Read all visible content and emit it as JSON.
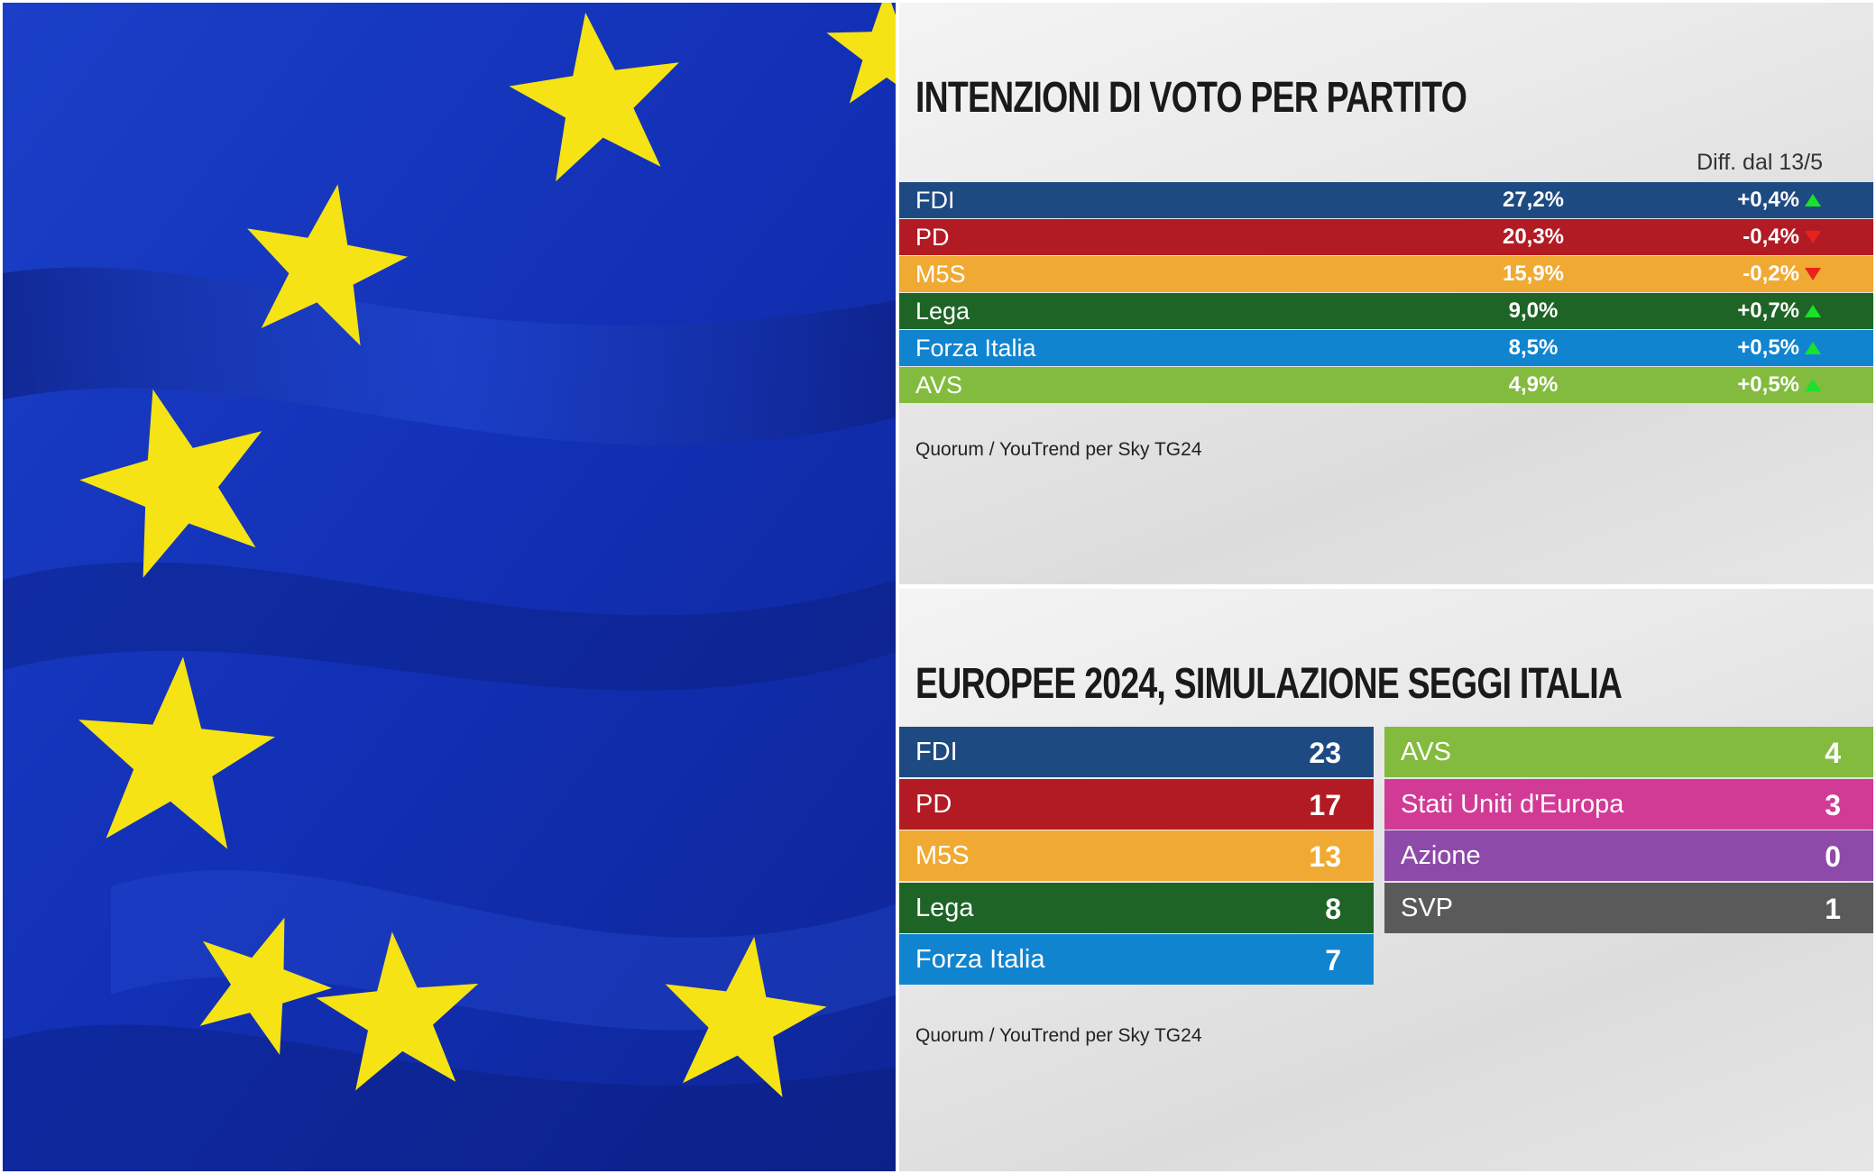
{
  "colors": {
    "FDI": "#1e4a82",
    "PD": "#b31b24",
    "M5S": "#f0aa33",
    "Lega": "#1e6426",
    "Forza Italia": "#1184d0",
    "AVS": "#83bb3f",
    "Stati Uniti d'Europa": "#d13b96",
    "Azione": "#8e4aa8",
    "SVP": "#5a5a5a",
    "up_arrow": "#19e22a",
    "down_arrow": "#e9221c"
  },
  "flag": {
    "background": "#1430b8",
    "star_color": "#f5e315"
  },
  "chart_data": [
    {
      "type": "table",
      "title": "INTENZIONI DI VOTO PER PARTITO",
      "diff_header": "Diff. dal 13/5",
      "rows": [
        {
          "party": "FDI",
          "value": "27,2%",
          "diff": "+0,4%",
          "trend": "up"
        },
        {
          "party": "PD",
          "value": "20,3%",
          "diff": "-0,4%",
          "trend": "down"
        },
        {
          "party": "M5S",
          "value": "15,9%",
          "diff": "-0,2%",
          "trend": "down"
        },
        {
          "party": "Lega",
          "value": "9,0%",
          "diff": "+0,7%",
          "trend": "up"
        },
        {
          "party": "Forza Italia",
          "value": "8,5%",
          "diff": "+0,5%",
          "trend": "up"
        },
        {
          "party": "AVS",
          "value": "4,9%",
          "diff": "+0,5%",
          "trend": "up"
        }
      ],
      "source": "Quorum / YouTrend per Sky TG24"
    },
    {
      "type": "table",
      "title": "EUROPEE 2024, SIMULAZIONE SEGGI ITALIA",
      "left_column": [
        {
          "party": "FDI",
          "seats": "23"
        },
        {
          "party": "PD",
          "seats": "17"
        },
        {
          "party": "M5S",
          "seats": "13"
        },
        {
          "party": "Lega",
          "seats": "8"
        },
        {
          "party": "Forza Italia",
          "seats": "7"
        }
      ],
      "right_column": [
        {
          "party": "AVS",
          "seats": "4"
        },
        {
          "party": "Stati Uniti d'Europa",
          "seats": "3"
        },
        {
          "party": "Azione",
          "seats": "0"
        },
        {
          "party": "SVP",
          "seats": "1"
        }
      ],
      "source": "Quorum / YouTrend per Sky TG24"
    }
  ]
}
